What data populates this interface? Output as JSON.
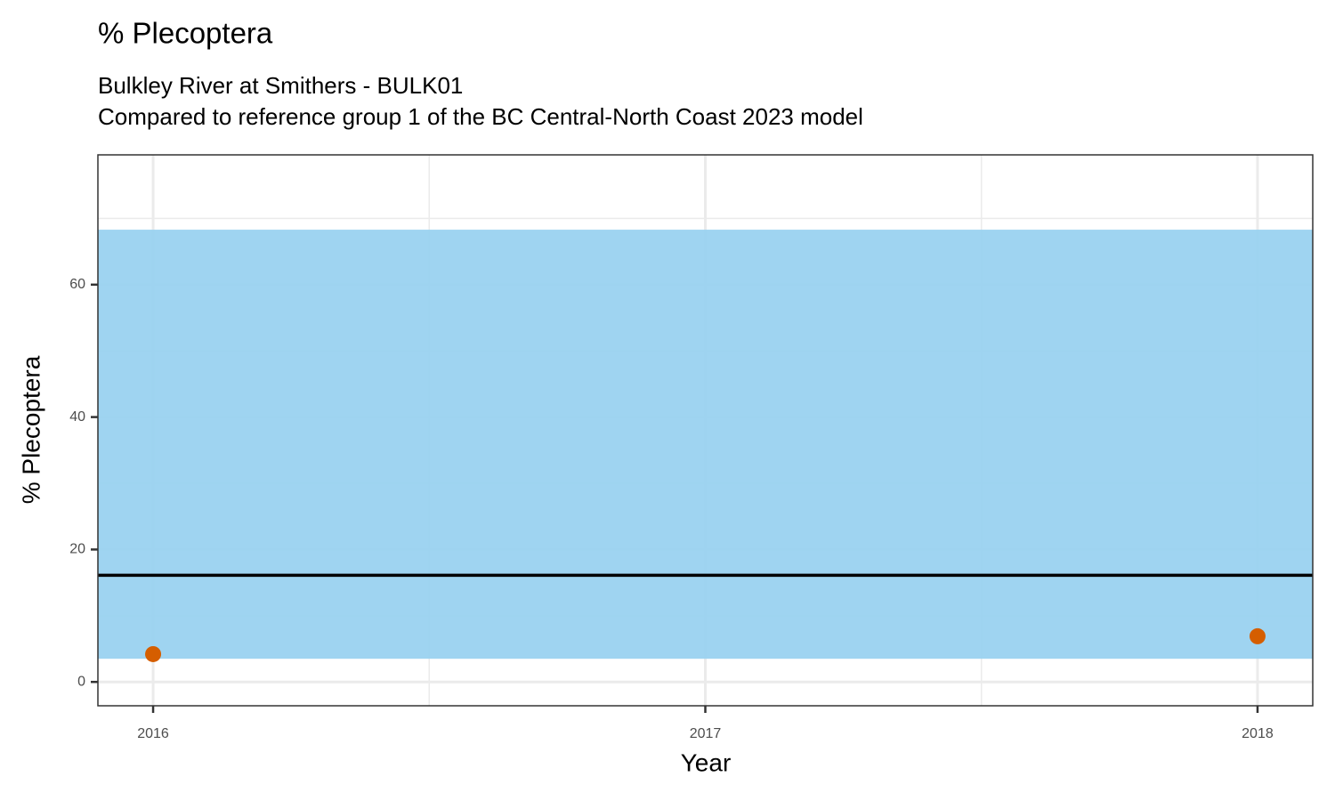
{
  "chart_data": {
    "type": "scatter",
    "title": "% Plecoptera",
    "subtitle": [
      "Bulkley River at Smithers - BULK01",
      "Compared to reference group 1 of the BC Central-North Coast 2023 model"
    ],
    "x_label": "Year",
    "y_label": "% Plecoptera",
    "x": [
      2016,
      2018
    ],
    "values": [
      4.2,
      6.9
    ],
    "color": "#d55e00",
    "reference_range": {
      "lower": 3.5,
      "upper": 68.3,
      "color": "#9ad2f0"
    },
    "reference_median": {
      "value": 16.1,
      "color": "#000000"
    },
    "xlim": [
      2015.9,
      2018.1
    ],
    "xticks": [
      2016,
      2017,
      2018
    ],
    "xminorticks": [
      2016.5,
      2017.5
    ],
    "ylim": [
      -3.6,
      79.6
    ],
    "yticks": [
      0,
      20,
      40,
      60
    ],
    "yminorticks": [
      10,
      30,
      50,
      70
    ],
    "grid": true
  }
}
